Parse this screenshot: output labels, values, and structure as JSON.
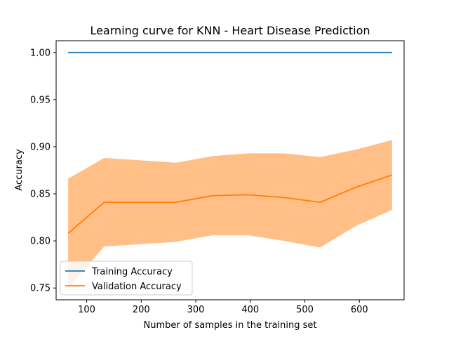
{
  "chart_data": {
    "type": "line",
    "title": "Learning curve for KNN - Heart Disease Prediction",
    "xlabel": "Number of samples in the training set",
    "ylabel": "Accuracy",
    "xlim": [
      44,
      682
    ],
    "ylim": [
      0.7375,
      1.0125
    ],
    "xticks": [
      100,
      200,
      300,
      400,
      500,
      600
    ],
    "xtick_labels": [
      "100",
      "200",
      "300",
      "400",
      "500",
      "600"
    ],
    "yticks": [
      0.75,
      0.8,
      0.85,
      0.9,
      0.95,
      1.0
    ],
    "ytick_labels": [
      "0.75",
      "0.80",
      "0.85",
      "0.90",
      "0.95",
      "1.00"
    ],
    "grid": false,
    "legend_position": "lower-left",
    "x": [
      66,
      132,
      264,
      330,
      396,
      462,
      528,
      594,
      660
    ],
    "series": [
      {
        "name": "Training Accuracy",
        "color": "#1f77b4",
        "values": [
          1.0,
          1.0,
          1.0,
          1.0,
          1.0,
          1.0,
          1.0,
          1.0,
          1.0
        ]
      },
      {
        "name": "Validation Accuracy",
        "color": "#ff7f0e",
        "values": [
          0.808,
          0.841,
          0.841,
          0.848,
          0.849,
          0.846,
          0.841,
          0.857,
          0.87
        ],
        "band_upper": [
          0.866,
          0.888,
          0.883,
          0.89,
          0.893,
          0.893,
          0.889,
          0.897,
          0.907
        ],
        "band_lower": [
          0.75,
          0.794,
          0.799,
          0.806,
          0.806,
          0.8,
          0.793,
          0.816,
          0.833
        ],
        "band_color": "#ffbf86"
      }
    ]
  }
}
